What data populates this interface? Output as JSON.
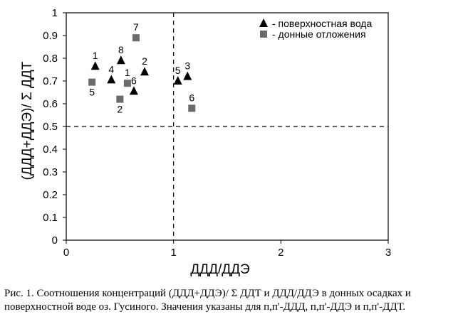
{
  "chart_data": {
    "type": "scatter",
    "xlabel": "ДДД/ДДЭ",
    "ylabel": "(ДДД+ДДЭ)/ Σ ДДТ",
    "xlim": [
      0,
      3
    ],
    "ylim": [
      0,
      1
    ],
    "x_ticks": [
      0,
      1,
      2,
      3
    ],
    "y_ticks": [
      "0",
      "0.1",
      "0.2",
      "0.3",
      "0.4",
      "0.5",
      "0.6",
      "0.7",
      "0.8",
      "0.9",
      "1"
    ],
    "reference_lines": {
      "x": 1,
      "y": 0.5,
      "style": "dashed"
    },
    "legend_position": "top-right",
    "series": [
      {
        "name": "- поверхностная вода",
        "marker": "triangle",
        "color": "#000000",
        "points": [
          {
            "x": 0.27,
            "y": 0.765,
            "label": "1",
            "label_pos": "above"
          },
          {
            "x": 0.42,
            "y": 0.705,
            "label": "4",
            "label_pos": "above"
          },
          {
            "x": 0.51,
            "y": 0.79,
            "label": "8",
            "label_pos": "above"
          },
          {
            "x": 0.73,
            "y": 0.74,
            "label": "2",
            "label_pos": "above"
          },
          {
            "x": 0.63,
            "y": 0.655,
            "label": "6",
            "label_pos": "above"
          },
          {
            "x": 1.04,
            "y": 0.7,
            "label": "5",
            "label_pos": "above"
          },
          {
            "x": 1.13,
            "y": 0.72,
            "label": "3",
            "label_pos": "above"
          }
        ]
      },
      {
        "name": "- донные отложения",
        "marker": "square",
        "color": "#6b6b6b",
        "points": [
          {
            "x": 0.65,
            "y": 0.89,
            "label": "7",
            "label_pos": "above"
          },
          {
            "x": 0.24,
            "y": 0.695,
            "label": "5",
            "label_pos": "below"
          },
          {
            "x": 0.57,
            "y": 0.69,
            "label": "1",
            "label_pos": "above"
          },
          {
            "x": 0.5,
            "y": 0.62,
            "label": "2",
            "label_pos": "below"
          },
          {
            "x": 1.17,
            "y": 0.58,
            "label": "6",
            "label_pos": "above"
          }
        ]
      }
    ]
  },
  "caption": {
    "line1": "Рис. 1. Соотношения концентраций (ДДД+ДДЭ)/ Σ ДДТ и ДДД/ДДЭ в донных осадках и",
    "line2": "поверхностной воде оз. Гусиного. Значения указаны для п,п'-ДДД, п,п'-ДДЭ и п,п'-ДДТ."
  }
}
